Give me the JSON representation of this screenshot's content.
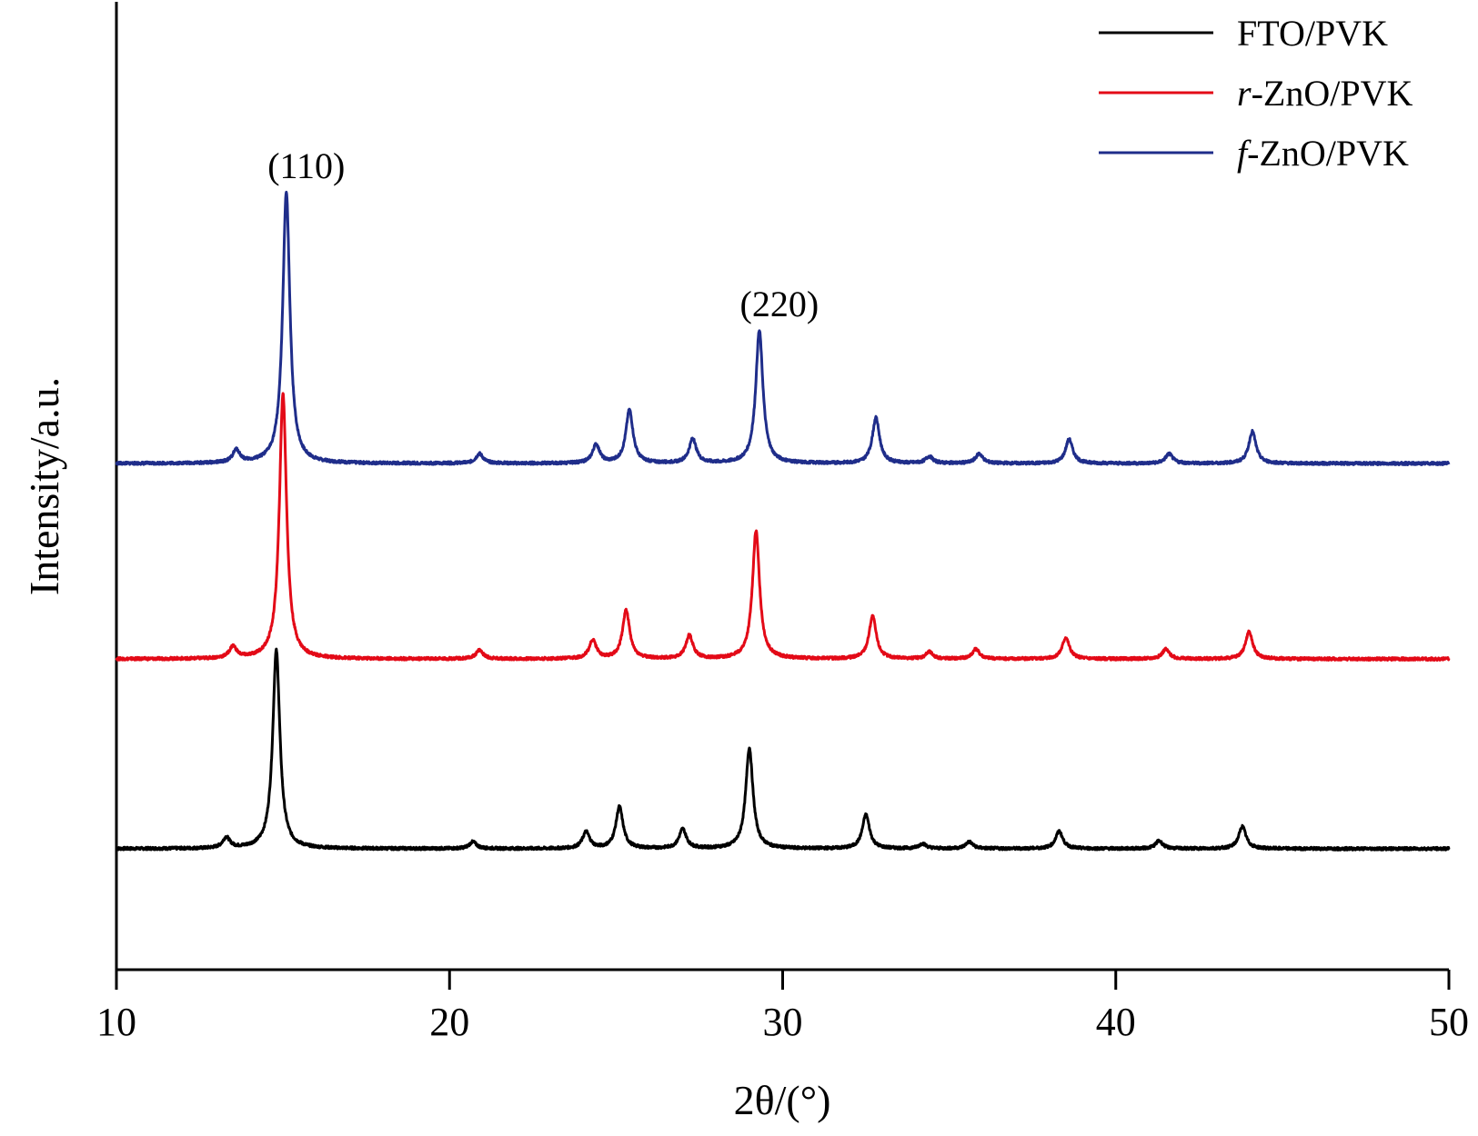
{
  "chart_data": {
    "type": "line",
    "title": "",
    "xlabel": "2θ/(°)",
    "ylabel": "Intensity/a.u.",
    "xlim": [
      10,
      50
    ],
    "ylim": [
      0,
      1
    ],
    "x_ticks": [
      10,
      20,
      30,
      40,
      50
    ],
    "y_ticks": [],
    "grid": false,
    "legend": "top-right",
    "series": [
      {
        "name": "FTO/PVK",
        "color": "#000000",
        "baseline": 0.125,
        "peaks": [
          [
            13.3,
            0.011
          ],
          [
            14.8,
            0.205
          ],
          [
            20.7,
            0.007
          ],
          [
            24.1,
            0.017
          ],
          [
            25.1,
            0.043
          ],
          [
            27.0,
            0.02
          ],
          [
            29.0,
            0.104
          ],
          [
            32.5,
            0.035
          ],
          [
            34.2,
            0.005
          ],
          [
            35.6,
            0.007
          ],
          [
            38.3,
            0.018
          ],
          [
            41.3,
            0.008
          ],
          [
            43.8,
            0.023
          ]
        ]
      },
      {
        "name": "r-ZnO/PVK",
        "color": "#e30a17",
        "baseline": 0.321,
        "peaks": [
          [
            13.5,
            0.012
          ],
          [
            15.0,
            0.274
          ],
          [
            20.9,
            0.009
          ],
          [
            24.3,
            0.019
          ],
          [
            25.3,
            0.05
          ],
          [
            27.2,
            0.024
          ],
          [
            29.2,
            0.132
          ],
          [
            32.7,
            0.044
          ],
          [
            34.4,
            0.007
          ],
          [
            35.8,
            0.01
          ],
          [
            38.5,
            0.022
          ],
          [
            41.5,
            0.01
          ],
          [
            44.0,
            0.028
          ]
        ]
      },
      {
        "name": "f-ZnO/PVK",
        "color": "#1f2d8a",
        "baseline": 0.523,
        "peaks": [
          [
            13.6,
            0.013
          ],
          [
            15.1,
            0.28
          ],
          [
            20.9,
            0.01
          ],
          [
            24.4,
            0.019
          ],
          [
            25.4,
            0.055
          ],
          [
            27.3,
            0.025
          ],
          [
            29.3,
            0.137
          ],
          [
            32.8,
            0.047
          ],
          [
            34.4,
            0.007
          ],
          [
            35.9,
            0.01
          ],
          [
            38.6,
            0.025
          ],
          [
            41.6,
            0.01
          ],
          [
            44.1,
            0.033
          ]
        ]
      }
    ],
    "annotations": [
      {
        "text": "(110)",
        "x": 15.1
      },
      {
        "text": "(220)",
        "x": 29.3
      }
    ]
  }
}
